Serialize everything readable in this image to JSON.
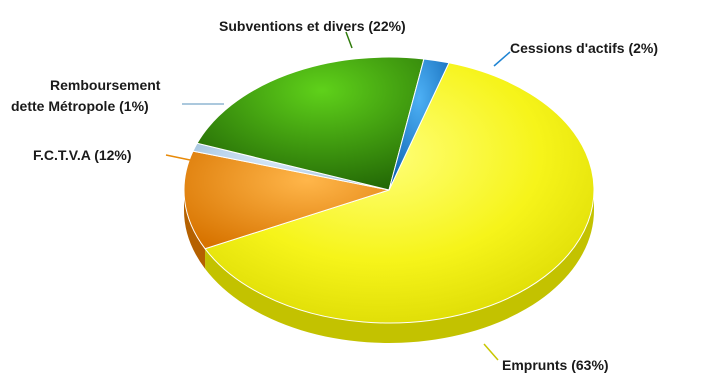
{
  "chart_data": {
    "type": "pie",
    "title": "",
    "slices": [
      {
        "label": "Emprunts (63%)",
        "value": 63,
        "color": "#eaea10"
      },
      {
        "label": "F.C.T.V.A (12%)",
        "value": 12,
        "color": "#e88a08"
      },
      {
        "label": "Remboursement dette Métropole (1%)",
        "value": 1,
        "color": "#a9c8dd"
      },
      {
        "label": "Subventions et divers (22%)",
        "value": 22,
        "color": "#3d9a0c"
      },
      {
        "label": "Cessions d'actifs (2%)",
        "value": 2,
        "color": "#1f84d3"
      }
    ],
    "legend": "none"
  }
}
